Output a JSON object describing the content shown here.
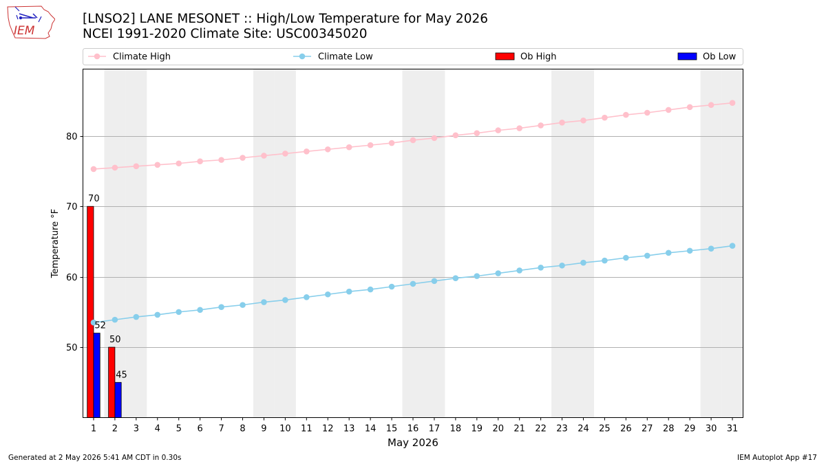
{
  "logo": {
    "text": "IEM"
  },
  "header": {
    "title_line1": "[LNSO2] LANE MESONET :: High/Low Temperature for May 2026",
    "title_line2": "NCEI 1991-2020 Climate Site: USC00345020"
  },
  "footer": {
    "left": "Generated at 2 May 2026 5:41 AM CDT in 0.30s",
    "right": "IEM Autoplot App #17"
  },
  "colors": {
    "climate_high": "#ffc0cb",
    "climate_low": "#87ceeb",
    "ob_high": "#ff0000",
    "ob_low": "#0000ff",
    "weekend_band": "#eeeeee",
    "grid": "#b0b0b0"
  },
  "chart_data": {
    "type": "bar",
    "xlabel": "May 2026",
    "ylabel": "Temperature °F",
    "xlim": [
      0.5,
      31.5
    ],
    "ylim": [
      40,
      89.5
    ],
    "yticks": [
      50,
      60,
      70,
      80
    ],
    "grid": "horizontal",
    "legend_placement": "top, above plot",
    "x": [
      1,
      2,
      3,
      4,
      5,
      6,
      7,
      8,
      9,
      10,
      11,
      12,
      13,
      14,
      15,
      16,
      17,
      18,
      19,
      20,
      21,
      22,
      23,
      24,
      25,
      26,
      27,
      28,
      29,
      30,
      31
    ],
    "weekend_days": [
      2,
      3,
      9,
      10,
      16,
      17,
      23,
      24,
      30,
      31
    ],
    "series": [
      {
        "name": "Climate High",
        "kind": "line",
        "values": [
          75.3,
          75.5,
          75.7,
          75.9,
          76.1,
          76.4,
          76.6,
          76.9,
          77.2,
          77.5,
          77.8,
          78.1,
          78.4,
          78.7,
          79.0,
          79.4,
          79.7,
          80.1,
          80.4,
          80.8,
          81.1,
          81.5,
          81.9,
          82.2,
          82.6,
          83.0,
          83.3,
          83.7,
          84.1,
          84.4,
          84.7
        ]
      },
      {
        "name": "Climate Low",
        "kind": "line",
        "values": [
          53.5,
          53.9,
          54.3,
          54.6,
          55.0,
          55.3,
          55.7,
          56.0,
          56.4,
          56.7,
          57.1,
          57.5,
          57.9,
          58.2,
          58.6,
          59.0,
          59.4,
          59.8,
          60.1,
          60.5,
          60.9,
          61.3,
          61.6,
          62.0,
          62.3,
          62.7,
          63.0,
          63.4,
          63.7,
          64.0,
          64.4
        ]
      },
      {
        "name": "Ob High",
        "kind": "bar",
        "x": [
          1,
          2
        ],
        "values": [
          70,
          50
        ],
        "labels": [
          "70",
          "50"
        ]
      },
      {
        "name": "Ob Low",
        "kind": "bar",
        "x": [
          1,
          2
        ],
        "values": [
          52,
          45
        ],
        "labels": [
          "52",
          "45"
        ]
      }
    ]
  }
}
